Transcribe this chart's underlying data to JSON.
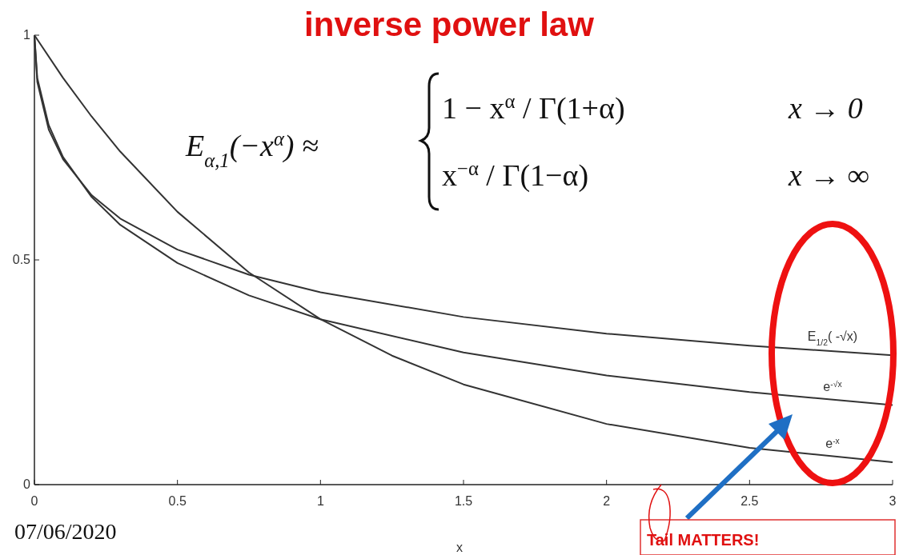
{
  "chart_data": {
    "type": "line",
    "title": "inverse power law",
    "xlabel": "x",
    "xlim": [
      0,
      3
    ],
    "ylim": [
      0,
      1
    ],
    "xticks": [
      0,
      0.5,
      1,
      1.5,
      2,
      2.5,
      3
    ],
    "yticks": [
      0,
      0.5,
      1
    ],
    "grid": false,
    "marker": "none",
    "line_style": "solid",
    "series": [
      {
        "name": "E$_{1/2}$( -√x)",
        "color": "#333333",
        "x": [
          0,
          0.01,
          0.05,
          0.1,
          0.2,
          0.3,
          0.5,
          0.75,
          1,
          1.5,
          2,
          2.5,
          3
        ],
        "values": [
          1,
          0.896,
          0.79,
          0.724,
          0.644,
          0.592,
          0.523,
          0.467,
          0.428,
          0.373,
          0.336,
          0.309,
          0.288
        ]
      },
      {
        "name": "e$^{-√x}$",
        "color": "#333333",
        "x": [
          0,
          0.01,
          0.05,
          0.1,
          0.2,
          0.3,
          0.5,
          0.75,
          1,
          1.5,
          2,
          2.5,
          3
        ],
        "values": [
          1,
          0.905,
          0.8,
          0.729,
          0.64,
          0.578,
          0.493,
          0.421,
          0.368,
          0.294,
          0.243,
          0.206,
          0.177
        ]
      },
      {
        "name": "e$^{-x}$",
        "color": "#333333",
        "x": [
          0,
          0.1,
          0.2,
          0.3,
          0.5,
          0.75,
          1,
          1.25,
          1.5,
          2,
          2.5,
          3
        ],
        "values": [
          1,
          0.905,
          0.819,
          0.741,
          0.607,
          0.472,
          0.368,
          0.287,
          0.223,
          0.135,
          0.082,
          0.05
        ]
      }
    ],
    "annotations": [
      "E$_{α,1}$(−x$^{α}$) ≈",
      "1 − x$^{α}$ / Γ(1+α)",
      "x → 0",
      "x$^{−α}$ / Γ(1−α)",
      "x → ∞",
      "07/06/2020",
      "Tail MATTERS!"
    ]
  }
}
